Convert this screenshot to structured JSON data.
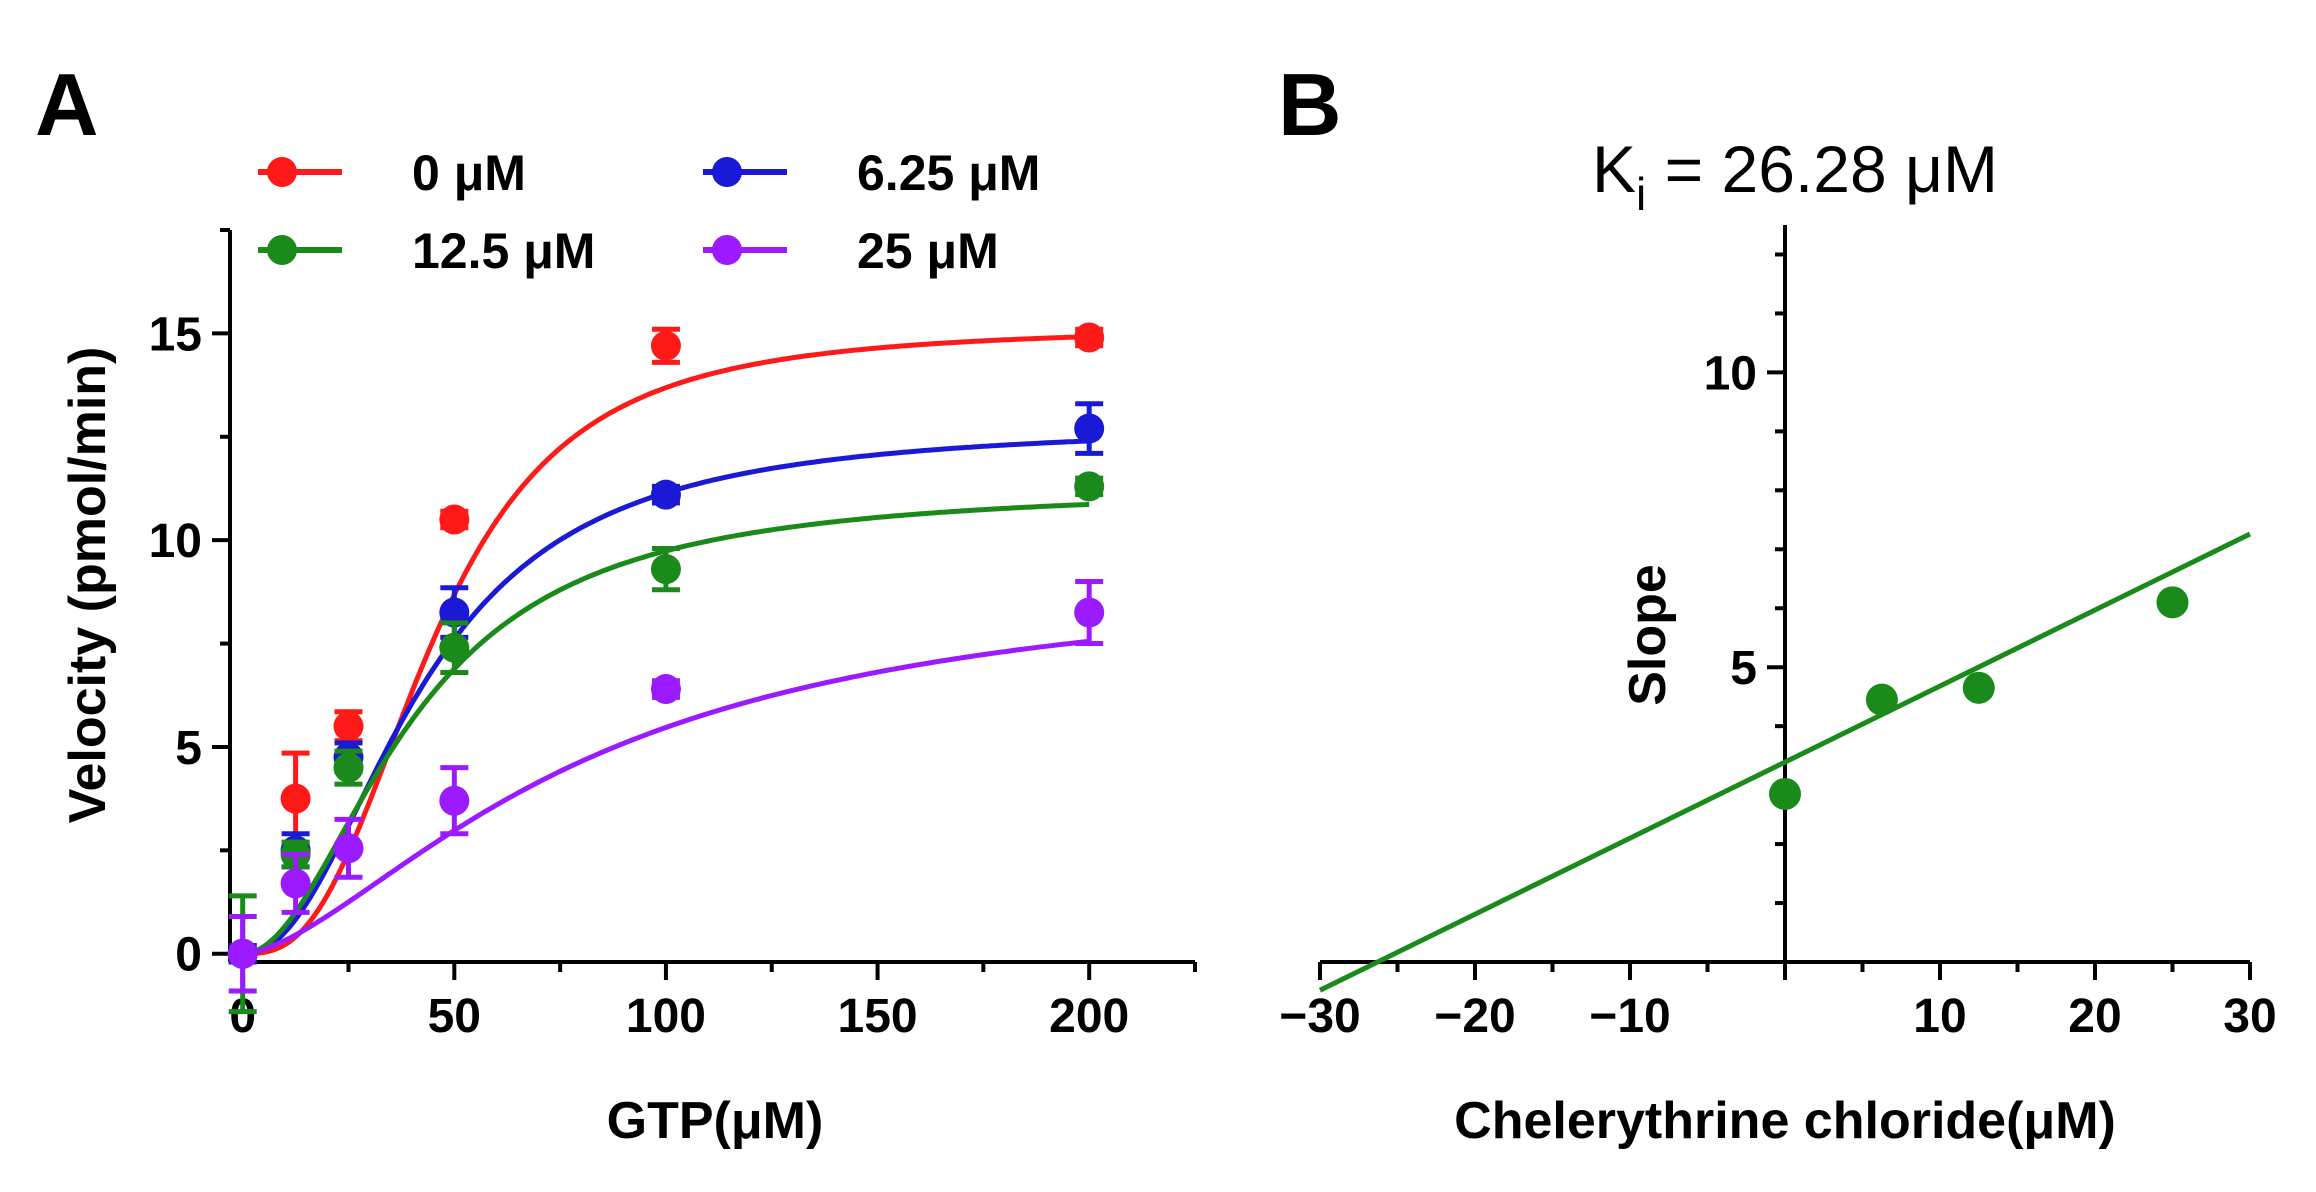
{
  "chart_data": [
    {
      "panel": "A",
      "type": "line",
      "title": "",
      "xlabel": "GTP(μM)",
      "ylabel": "Velocity (pmol/min)",
      "xlim": [
        -3,
        225
      ],
      "ylim": [
        -0.2,
        17.5
      ],
      "xticks": [
        0,
        50,
        100,
        150,
        200
      ],
      "yticks": [
        0,
        5,
        10,
        15
      ],
      "x": [
        0,
        12.5,
        25,
        50,
        100,
        200
      ],
      "legend_position": "top",
      "series": [
        {
          "name": "0 μM",
          "color": "#ff1a1a",
          "values": [
            0,
            3.75,
            5.5,
            10.5,
            14.7,
            14.9
          ],
          "errors": [
            0.2,
            1.1,
            0.35,
            0.2,
            0.4,
            0.2
          ],
          "fit": {
            "vmax": 15.15,
            "k": 45,
            "h": 2.8
          }
        },
        {
          "name": "6.25 μM",
          "color": "#1a1ad6",
          "values": [
            0,
            2.5,
            4.75,
            8.25,
            11.1,
            12.7
          ],
          "errors": [
            0.2,
            0.4,
            0.35,
            0.6,
            0.2,
            0.6
          ],
          "fit": {
            "vmax": 12.8,
            "k": 42,
            "h": 2.2
          }
        },
        {
          "name": "12.5 μM",
          "color": "#1a8a1a",
          "values": [
            0,
            2.4,
            4.5,
            7.4,
            9.3,
            11.3
          ],
          "errors": [
            1.4,
            0.3,
            0.4,
            0.6,
            0.5,
            0.2
          ],
          "fit": {
            "vmax": 11.3,
            "k": 40,
            "h": 2.0
          }
        },
        {
          "name": "25 μM",
          "color": "#9b1aff",
          "values": [
            0,
            1.7,
            2.55,
            3.7,
            6.4,
            8.25
          ],
          "errors": [
            0.9,
            0.7,
            0.7,
            0.8,
            0.2,
            0.75
          ],
          "fit": {
            "vmax": 9.3,
            "k": 80,
            "h": 1.6
          }
        }
      ]
    },
    {
      "panel": "B",
      "type": "scatter",
      "title": "K",
      "title_subscript": "i",
      "title_rest": " = 26.28 μM",
      "xlabel": "Chelerythrine chloride(μM)",
      "ylabel": "Slope",
      "xlim": [
        -30,
        30
      ],
      "ylim": [
        0,
        12.5
      ],
      "xticks": [
        -30,
        -20,
        -10,
        10,
        20,
        30
      ],
      "xtick_labels": [
        "−30",
        "−20",
        "−10",
        "10",
        "20",
        "30"
      ],
      "yticks": [
        5,
        10
      ],
      "color": "#1a8a1a",
      "x": [
        0,
        6.25,
        12.5,
        25
      ],
      "y": [
        2.85,
        4.45,
        4.65,
        6.1
      ],
      "fit_line": {
        "slope": 0.129,
        "intercept": 3.39,
        "x_range": [
          -30,
          30
        ]
      }
    }
  ]
}
